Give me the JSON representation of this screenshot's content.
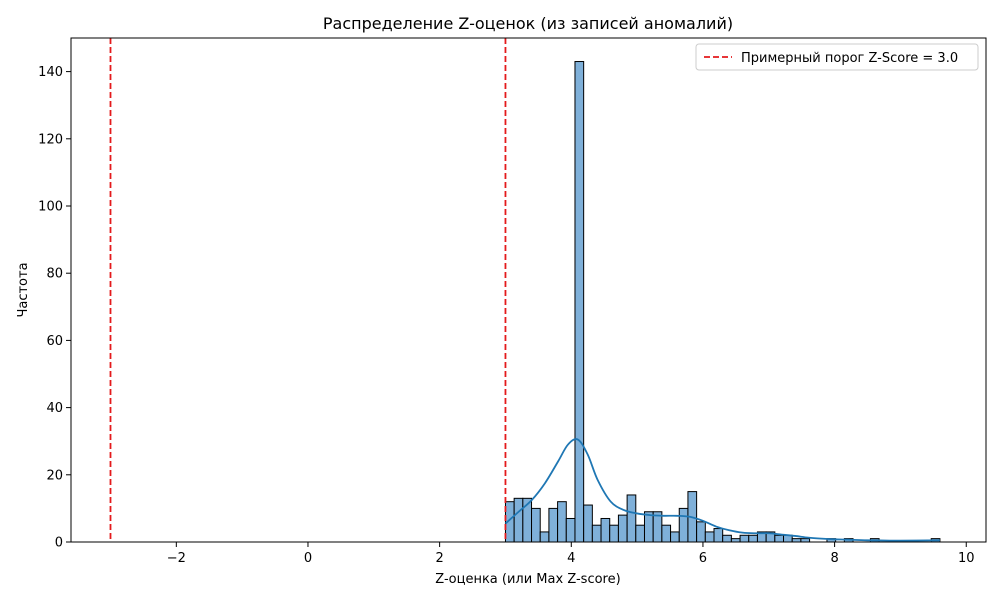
{
  "chart_data": {
    "type": "bar",
    "title": "Распределение Z-оценок (из записей аномалий)",
    "xlabel": "Z-оценка (или Max Z-score)",
    "ylabel": "Частота",
    "xlim": [
      -3.6,
      10.3
    ],
    "ylim": [
      0,
      150
    ],
    "xticks": [
      -2,
      0,
      2,
      4,
      6,
      8,
      10
    ],
    "yticks": [
      0,
      20,
      40,
      60,
      80,
      100,
      120,
      140
    ],
    "grid": false,
    "legend_position": "top-right",
    "bar_color": "#7fb0d9",
    "kde_color": "#1f77b4",
    "threshold_color": "#e41a1c",
    "bin_width": 0.132,
    "bins": [
      {
        "x0": 3.0,
        "count": 12
      },
      {
        "x0": 3.132,
        "count": 13
      },
      {
        "x0": 3.264,
        "count": 13
      },
      {
        "x0": 3.396,
        "count": 10
      },
      {
        "x0": 3.528,
        "count": 3
      },
      {
        "x0": 3.66,
        "count": 10
      },
      {
        "x0": 3.792,
        "count": 12
      },
      {
        "x0": 3.924,
        "count": 7
      },
      {
        "x0": 4.056,
        "count": 143
      },
      {
        "x0": 4.188,
        "count": 11
      },
      {
        "x0": 4.32,
        "count": 5
      },
      {
        "x0": 4.452,
        "count": 7
      },
      {
        "x0": 4.584,
        "count": 5
      },
      {
        "x0": 4.716,
        "count": 8
      },
      {
        "x0": 4.848,
        "count": 14
      },
      {
        "x0": 4.98,
        "count": 5
      },
      {
        "x0": 5.112,
        "count": 9
      },
      {
        "x0": 5.244,
        "count": 9
      },
      {
        "x0": 5.376,
        "count": 5
      },
      {
        "x0": 5.508,
        "count": 3
      },
      {
        "x0": 5.64,
        "count": 10
      },
      {
        "x0": 5.772,
        "count": 15
      },
      {
        "x0": 5.904,
        "count": 6
      },
      {
        "x0": 6.036,
        "count": 3
      },
      {
        "x0": 6.168,
        "count": 4
      },
      {
        "x0": 6.3,
        "count": 2
      },
      {
        "x0": 6.432,
        "count": 1
      },
      {
        "x0": 6.564,
        "count": 2
      },
      {
        "x0": 6.696,
        "count": 2
      },
      {
        "x0": 6.828,
        "count": 3
      },
      {
        "x0": 6.96,
        "count": 3
      },
      {
        "x0": 7.092,
        "count": 2
      },
      {
        "x0": 7.224,
        "count": 2
      },
      {
        "x0": 7.356,
        "count": 1
      },
      {
        "x0": 7.488,
        "count": 1
      },
      {
        "x0": 7.884,
        "count": 1
      },
      {
        "x0": 8.148,
        "count": 1
      },
      {
        "x0": 8.544,
        "count": 1
      },
      {
        "x0": 9.468,
        "count": 1
      }
    ],
    "kde": {
      "x": [
        3.0,
        3.2,
        3.4,
        3.6,
        3.8,
        3.95,
        4.1,
        4.25,
        4.4,
        4.6,
        4.8,
        5.0,
        5.2,
        5.4,
        5.6,
        5.8,
        6.0,
        6.2,
        6.4,
        6.6,
        6.8,
        7.0,
        7.2,
        7.4,
        7.6,
        7.8,
        8.0,
        8.2,
        8.5,
        9.0,
        9.6
      ],
      "y": [
        5.5,
        9.0,
        12.5,
        17.5,
        24.0,
        29.0,
        30.5,
        26.0,
        18.5,
        12.0,
        9.5,
        8.5,
        8.0,
        7.8,
        7.8,
        7.5,
        6.3,
        4.6,
        3.5,
        2.8,
        2.6,
        2.6,
        2.2,
        1.8,
        1.3,
        1.0,
        0.8,
        0.7,
        0.5,
        0.4,
        0.5
      ]
    },
    "thresholds": [
      -3.0,
      3.0
    ],
    "legend": {
      "label": "Примерный порог Z-Score = 3.0"
    }
  }
}
